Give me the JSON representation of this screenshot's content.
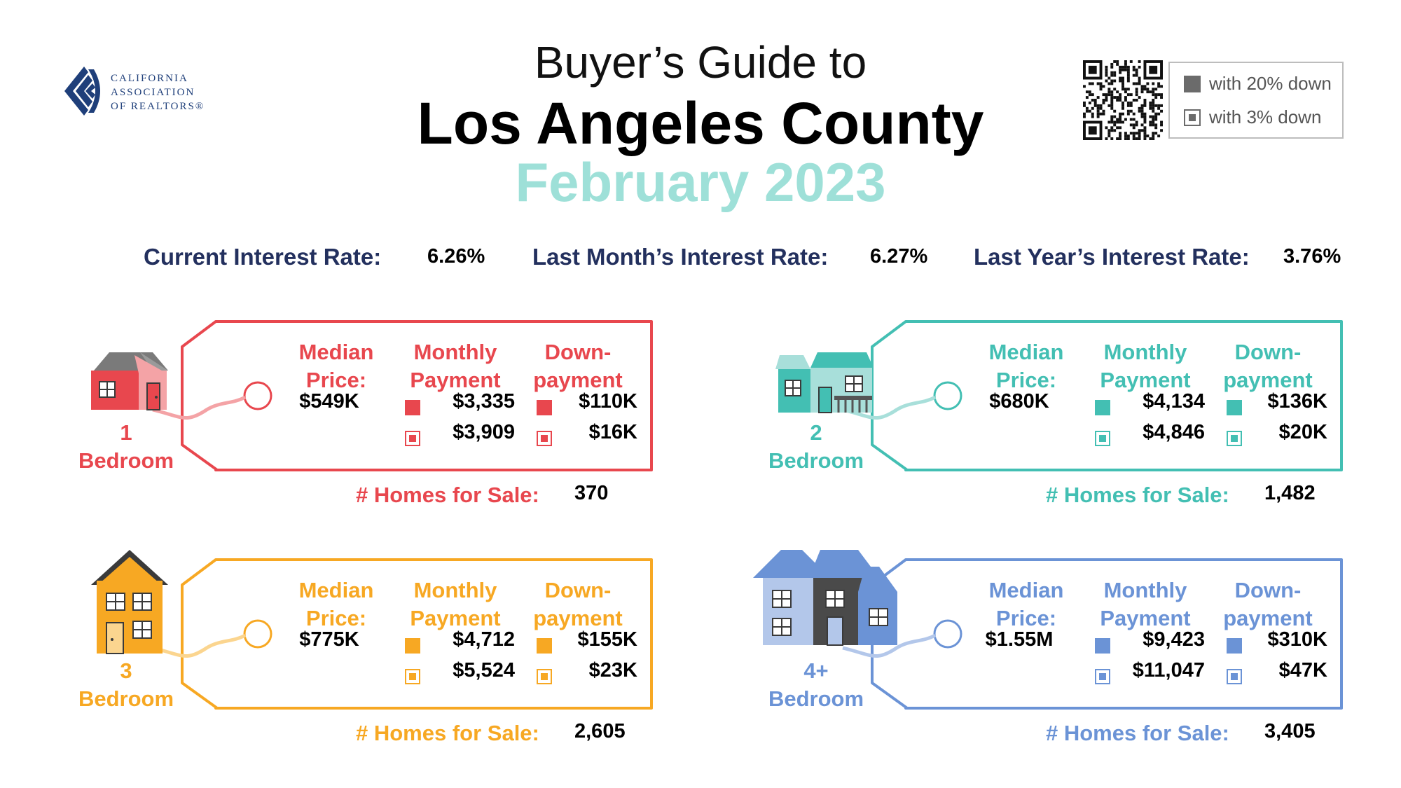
{
  "header": {
    "logo_text": [
      "CALIFORNIA",
      "ASSOCIATION",
      "OF REALTORS®"
    ],
    "title_line1": "Buyer’s Guide to",
    "title_line2": "Los Angeles County",
    "title_line3": "February 2023"
  },
  "legend": {
    "item1": "with 20% down",
    "item2": "with 3% down"
  },
  "rates": {
    "current_label": "Current Interest Rate:",
    "current_value": "6.26%",
    "last_month_label": "Last Month’s Interest Rate:",
    "last_month_value": "6.27%",
    "last_year_label": "Last Year’s Interest Rate:",
    "last_year_value": "3.76%"
  },
  "labels": {
    "median_1": "Median",
    "median_2": "Price:",
    "monthly_1": "Monthly",
    "monthly_2": "Payment",
    "down_1": "Down-",
    "down_2": "payment",
    "homes_for_sale": "# Homes for Sale:",
    "bedroom": "Bedroom"
  },
  "colors": {
    "bed1": "#e8474e",
    "bed2": "#43bfb3",
    "bed3": "#f7a823",
    "bed4": "#6b93d6",
    "navy": "#23305e"
  },
  "cards": {
    "bed1": {
      "bedrooms": "1",
      "median_price": "$549K",
      "monthly_20": "$3,335",
      "monthly_3": "$3,909",
      "down_20": "$110K",
      "down_3": "$16K",
      "homes": "370"
    },
    "bed2": {
      "bedrooms": "2",
      "median_price": "$680K",
      "monthly_20": "$4,134",
      "monthly_3": "$4,846",
      "down_20": "$136K",
      "down_3": "$20K",
      "homes": "1,482"
    },
    "bed3": {
      "bedrooms": "3",
      "median_price": "$775K",
      "monthly_20": "$4,712",
      "monthly_3": "$5,524",
      "down_20": "$155K",
      "down_3": "$23K",
      "homes": "2,605"
    },
    "bed4": {
      "bedrooms": "4+",
      "median_price": "$1.55M",
      "monthly_20": "$9,423",
      "monthly_3": "$11,047",
      "down_20": "$310K",
      "down_3": "$47K",
      "homes": "3,405"
    }
  }
}
